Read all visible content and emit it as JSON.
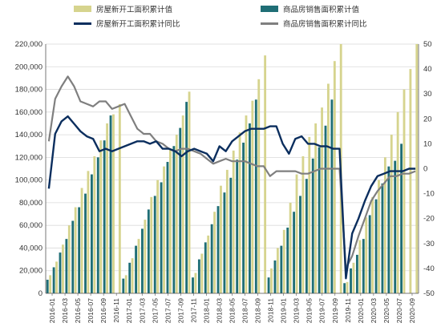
{
  "legend": {
    "s1": "房屋新开工面积累计值",
    "s2": "商品房销售面积累计值",
    "s3": "房屋新开工面积累计同比",
    "s4": "商品房销售面积累计同比"
  },
  "colors": {
    "s1": "#d6d48e",
    "s2": "#1f6e76",
    "s3": "#0b2e5e",
    "s4": "#7f7f7f",
    "grid": "#d9d9d9",
    "axis": "#555555"
  },
  "chart_data": {
    "type": "bar",
    "title": "",
    "xlabel": "",
    "ylabel": "",
    "ylim": [
      0,
      220000
    ],
    "y2lim": [
      -50,
      50
    ],
    "grid": true,
    "legend_placement": "top",
    "x_tick_labels": [
      "2016-01",
      "2016-03",
      "2016-05",
      "2016-07",
      "2016-09",
      "2016-11",
      "2017-01",
      "2017-03",
      "2017-05",
      "2017-07",
      "2017-09",
      "2017-11",
      "2018-01",
      "2018-03",
      "2018-05",
      "2018-07",
      "2018-09",
      "2018-11",
      "2019-01",
      "2019-03",
      "2019-05",
      "2019-07",
      "2019-09",
      "2019-11",
      "2020-01",
      "2020-03",
      "2020-05",
      "2020-07",
      "2020-09"
    ],
    "y_ticks": [
      0,
      20000,
      40000,
      60000,
      80000,
      100000,
      120000,
      140000,
      160000,
      180000,
      200000,
      220000
    ],
    "y2_ticks": [
      -50,
      -40,
      -30,
      -20,
      -10,
      0,
      10,
      20,
      30,
      40,
      50
    ],
    "categories": [
      "2016-01",
      "2016-02",
      "2016-03",
      "2016-04",
      "2016-05",
      "2016-06",
      "2016-07",
      "2016-08",
      "2016-09",
      "2016-10",
      "2016-11",
      "2016-12",
      "2017-01",
      "2017-02",
      "2017-03",
      "2017-04",
      "2017-05",
      "2017-06",
      "2017-07",
      "2017-08",
      "2017-09",
      "2017-10",
      "2017-11",
      "2017-12",
      "2018-01",
      "2018-02",
      "2018-03",
      "2018-04",
      "2018-05",
      "2018-06",
      "2018-07",
      "2018-08",
      "2018-09",
      "2018-10",
      "2018-11",
      "2018-12",
      "2019-01",
      "2019-02",
      "2019-03",
      "2019-04",
      "2019-05",
      "2019-06",
      "2019-07",
      "2019-08",
      "2019-09",
      "2019-10",
      "2019-11",
      "2019-12",
      "2020-01",
      "2020-02",
      "2020-03",
      "2020-04",
      "2020-05",
      "2020-07",
      "2020-08",
      "2020-09",
      "2020-10",
      "2020-11",
      "2020-12"
    ],
    "series": [
      {
        "name": "房屋新开工面积累计值",
        "axis": "left",
        "kind": "bar",
        "values": [
          16000,
          28000,
          43000,
          60000,
          76000,
          93000,
          108000,
          121000,
          135000,
          150000,
          158000,
          167000,
          16000,
          31000,
          48000,
          65000,
          85000,
          100000,
          112000,
          128000,
          140000,
          157000,
          178000,
          18000,
          35000,
          51000,
          72000,
          95000,
          109000,
          126000,
          142000,
          157000,
          170000,
          189000,
          210000,
          22000,
          40000,
          56000,
          80000,
          105000,
          121000,
          138000,
          150000,
          164000,
          185000,
          205000,
          220000,
          10000,
          27000,
          47000,
          67000,
          85000,
          100000,
          120000,
          140000,
          160000,
          180000,
          198000,
          220000
        ]
      },
      {
        "name": "商品房销售面积累计值",
        "axis": "left",
        "kind": "bar",
        "values": [
          12000,
          23000,
          36000,
          48000,
          64000,
          76000,
          88000,
          105000,
          120000,
          135000,
          157000,
          0,
          13000,
          27000,
          42000,
          57000,
          74000,
          86000,
          98000,
          116000,
          130000,
          146000,
          169000,
          14000,
          30000,
          45000,
          61000,
          77000,
          89000,
          102000,
          118000,
          133000,
          150000,
          171000,
          0,
          14000,
          29000,
          42000,
          58000,
          72000,
          86000,
          101000,
          119000,
          129000,
          148000,
          171000,
          0,
          9000,
          22000,
          34000,
          48000,
          69000,
          83000,
          97000,
          112000,
          117000,
          132000,
          0,
          0
        ]
      },
      {
        "name": "房屋新开工面积累计同比",
        "axis": "right",
        "kind": "line",
        "x_count": 59,
        "values": [
          -8,
          14,
          19,
          21,
          18,
          15,
          13,
          12,
          7,
          8,
          7,
          8,
          9,
          10,
          11,
          11,
          10,
          11,
          8,
          8,
          7,
          5,
          7,
          8,
          7,
          6,
          3,
          9,
          7,
          11,
          13,
          15,
          16,
          16,
          16,
          17,
          17,
          10,
          6,
          12,
          13,
          10,
          10,
          9,
          9,
          8,
          8,
          -44,
          -26,
          -20,
          -13,
          -7,
          -3,
          -2,
          -1,
          -1,
          -1,
          0,
          0
        ]
      },
      {
        "name": "商品房销售面积累计同比",
        "axis": "right",
        "kind": "line",
        "x_count": 59,
        "values": [
          11,
          28,
          33,
          37,
          33,
          27,
          26,
          25,
          27,
          27,
          24,
          25,
          26,
          21,
          16,
          14,
          14,
          11,
          10,
          8,
          7,
          8,
          8,
          7,
          6,
          4,
          2,
          3,
          4,
          3,
          3,
          3,
          2,
          1,
          1,
          -3,
          -1,
          -1,
          -1,
          -1,
          -2,
          -2,
          -1,
          0,
          0,
          0,
          0,
          -40,
          -35,
          -27,
          -20,
          -13,
          -9,
          -6,
          -3,
          -3,
          -2,
          -2,
          -1
        ]
      }
    ]
  }
}
